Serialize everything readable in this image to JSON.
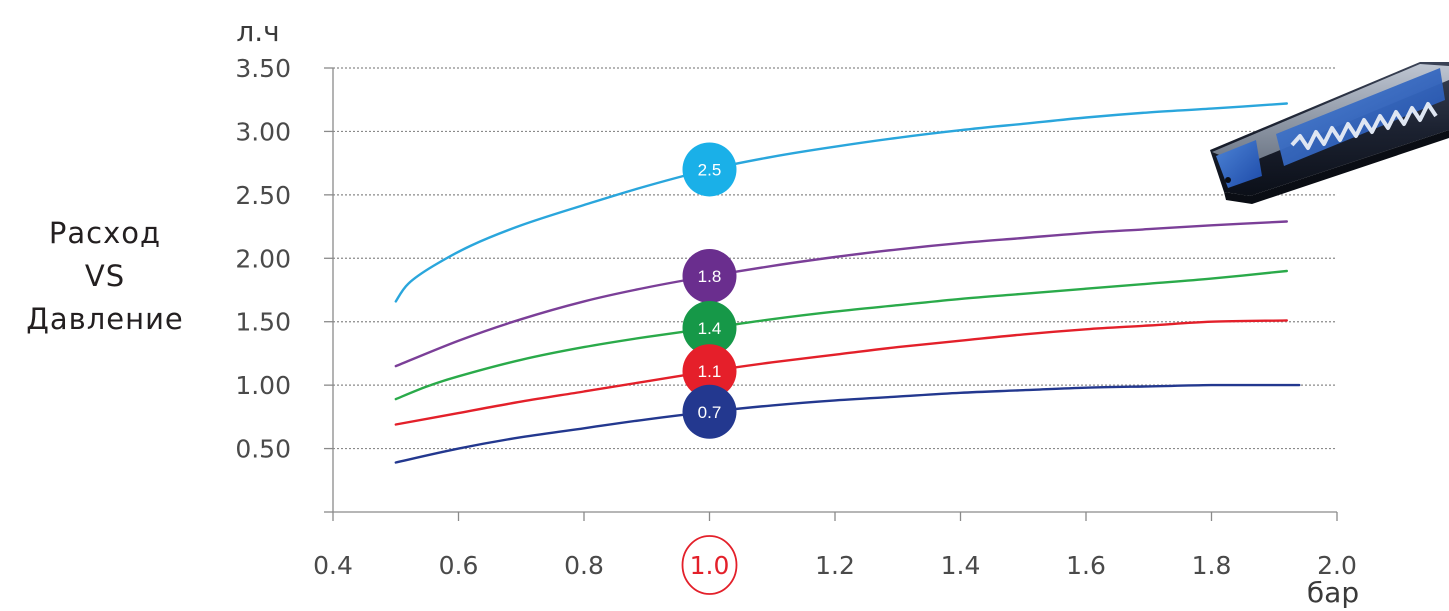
{
  "side_title": {
    "line1": "Расход",
    "line2": "VS",
    "line3": "Давление"
  },
  "chart_data": {
    "type": "line",
    "ylabel": "л.ч",
    "xlabel": "бар",
    "xlim": [
      0.4,
      2.0
    ],
    "ylim": [
      0.0,
      3.5
    ],
    "x_ticks": [
      0.4,
      0.6,
      0.8,
      1.0,
      1.2,
      1.4,
      1.6,
      1.8,
      2.0
    ],
    "x_tick_labels": [
      "0.4",
      "0.6",
      "0.8",
      "1.0",
      "1.2",
      "1.4",
      "1.6",
      "1.8",
      "2.0"
    ],
    "y_ticks": [
      0.5,
      1.0,
      1.5,
      2.0,
      2.5,
      3.0,
      3.5
    ],
    "y_tick_labels": [
      "0.50",
      "1.00",
      "1.50",
      "2.00",
      "2.50",
      "3.00",
      "3.50"
    ],
    "highlighted_x_tick": "1.0",
    "highlight_color": "#e3202a",
    "grid": "horizontal-dotted",
    "series": [
      {
        "label": "2.5",
        "color": "#2aa6dc",
        "marker_color": "#1ab0e8",
        "marker_x": 1.0,
        "marker_y": 2.7,
        "x": [
          0.5,
          0.52,
          0.56,
          0.62,
          0.7,
          0.8,
          0.9,
          1.0,
          1.1,
          1.2,
          1.3,
          1.4,
          1.5,
          1.6,
          1.7,
          1.8,
          1.92
        ],
        "y": [
          1.66,
          1.8,
          1.94,
          2.1,
          2.26,
          2.42,
          2.57,
          2.7,
          2.8,
          2.88,
          2.95,
          3.01,
          3.06,
          3.11,
          3.15,
          3.18,
          3.22
        ]
      },
      {
        "label": "1.8",
        "color": "#7b3f98",
        "marker_color": "#6a2e8e",
        "marker_x": 1.0,
        "marker_y": 1.86,
        "x": [
          0.5,
          0.6,
          0.7,
          0.8,
          0.9,
          1.0,
          1.1,
          1.2,
          1.3,
          1.4,
          1.5,
          1.6,
          1.7,
          1.8,
          1.92
        ],
        "y": [
          1.15,
          1.35,
          1.52,
          1.66,
          1.77,
          1.86,
          1.94,
          2.01,
          2.07,
          2.12,
          2.16,
          2.2,
          2.23,
          2.26,
          2.29
        ]
      },
      {
        "label": "1.4",
        "color": "#2aaa4a",
        "marker_color": "#169848",
        "marker_x": 1.0,
        "marker_y": 1.45,
        "x": [
          0.5,
          0.55,
          0.6,
          0.7,
          0.8,
          0.9,
          1.0,
          1.1,
          1.2,
          1.3,
          1.4,
          1.5,
          1.6,
          1.7,
          1.8,
          1.92
        ],
        "y": [
          0.89,
          0.99,
          1.07,
          1.2,
          1.3,
          1.38,
          1.45,
          1.52,
          1.58,
          1.63,
          1.68,
          1.72,
          1.76,
          1.8,
          1.84,
          1.9
        ]
      },
      {
        "label": "1.1",
        "color": "#e3202a",
        "marker_color": "#e51f2a",
        "marker_x": 1.0,
        "marker_y": 1.11,
        "x": [
          0.5,
          0.6,
          0.7,
          0.8,
          0.9,
          1.0,
          1.1,
          1.2,
          1.3,
          1.4,
          1.5,
          1.6,
          1.7,
          1.8,
          1.92
        ],
        "y": [
          0.69,
          0.78,
          0.87,
          0.95,
          1.03,
          1.11,
          1.18,
          1.24,
          1.3,
          1.35,
          1.4,
          1.44,
          1.47,
          1.5,
          1.51
        ]
      },
      {
        "label": "0.7",
        "color": "#23388f",
        "marker_color": "#23388f",
        "marker_x": 1.0,
        "marker_y": 0.79,
        "x": [
          0.5,
          0.6,
          0.7,
          0.8,
          0.9,
          1.0,
          1.1,
          1.2,
          1.3,
          1.4,
          1.5,
          1.6,
          1.7,
          1.8,
          1.94
        ],
        "y": [
          0.39,
          0.5,
          0.59,
          0.66,
          0.73,
          0.79,
          0.84,
          0.88,
          0.91,
          0.94,
          0.96,
          0.98,
          0.99,
          1.0,
          1.0
        ]
      }
    ]
  }
}
